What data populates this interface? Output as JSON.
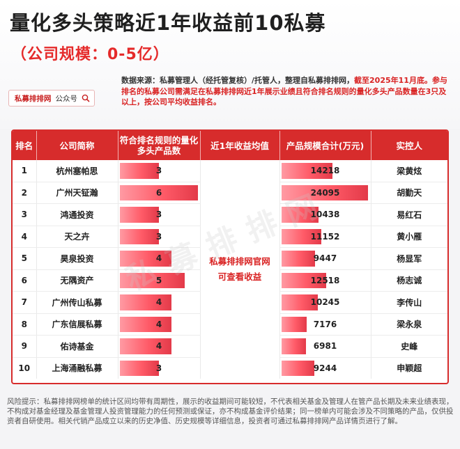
{
  "header": {
    "title": "量化多头策略近1年收益前10私募",
    "subtitle": "（公司规模：0-5亿）",
    "source_note_main": "数据来源：私募管理人（经托管复核）/托管人，整理自私募排排网，",
    "source_note_red": "截至2025年11月底。参与排名的私募公司需满足在私募排排网近1年展示业绩且符合排名规则的量化多头产品数量在3只及以上，按公司平均收益排名。",
    "wechat_brand": "私募排排网",
    "wechat_suffix": "公众号"
  },
  "table": {
    "headers": {
      "rank": "排名",
      "company": "公司简称",
      "count": "符合排名规则的量化多头产品数",
      "return": "近1年收益均值",
      "scale": "产品规模合计(万元)",
      "controller": "实控人"
    },
    "merged_note_line1": "私募排排网官网",
    "merged_note_line2": "可查看收益",
    "rows": [
      {
        "rank": "1",
        "company": "杭州塞帕思",
        "count": 3,
        "count_label": "3",
        "scale": 14218,
        "scale_label": "14218",
        "controller": "梁黄炫"
      },
      {
        "rank": "2",
        "company": "广州天钲瀚",
        "count": 6,
        "count_label": "6",
        "scale": 24095,
        "scale_label": "24095",
        "controller": "胡勤天"
      },
      {
        "rank": "3",
        "company": "鸿通投资",
        "count": 3,
        "count_label": "3",
        "scale": 10438,
        "scale_label": "10438",
        "controller": "易红石"
      },
      {
        "rank": "4",
        "company": "天之卉",
        "count": 3,
        "count_label": "3",
        "scale": 11152,
        "scale_label": "11152",
        "controller": "黄小雁"
      },
      {
        "rank": "5",
        "company": "昊泉投资",
        "count": 4,
        "count_label": "4",
        "scale": 9447,
        "scale_label": "9447",
        "controller": "杨显军"
      },
      {
        "rank": "6",
        "company": "无隅资产",
        "count": 5,
        "count_label": "5",
        "scale": 12518,
        "scale_label": "12518",
        "controller": "杨志诚"
      },
      {
        "rank": "7",
        "company": "广州传山私募",
        "count": 4,
        "count_label": "4",
        "scale": 10245,
        "scale_label": "10245",
        "controller": "李传山"
      },
      {
        "rank": "8",
        "company": "广东信展私募",
        "count": 4,
        "count_label": "4",
        "scale": 7176,
        "scale_label": "7176",
        "controller": "梁永泉"
      },
      {
        "rank": "9",
        "company": "佑诗基金",
        "count": 4,
        "count_label": "4",
        "scale": 6981,
        "scale_label": "6981",
        "controller": "史峰"
      },
      {
        "rank": "10",
        "company": "上海涌融私募",
        "count": 3,
        "count_label": "3",
        "scale": 9244,
        "scale_label": "9244",
        "controller": "申颖超"
      }
    ]
  },
  "disclaimer": "风险提示：私募排排网榜单的统计区间均带有周期性，展示的收益期间可能较短，不代表相关基金及管理人在管产品长期及未来业绩表现，不构成对基金经理及基金管理人投资管理能力的任何预测或保证，亦不构成基金评价结果；同一榜单内可能会涉及不同策略的产品，仅供投资者自研使用。相关代销产品成立以来的历史净值、历史规模等详细信息，投资者可通过私募排排网产品详情页进行了解。",
  "colors": {
    "accent": "#d72c2c",
    "bar_start": "#ff9aa3",
    "bar_end": "#e33a49"
  }
}
